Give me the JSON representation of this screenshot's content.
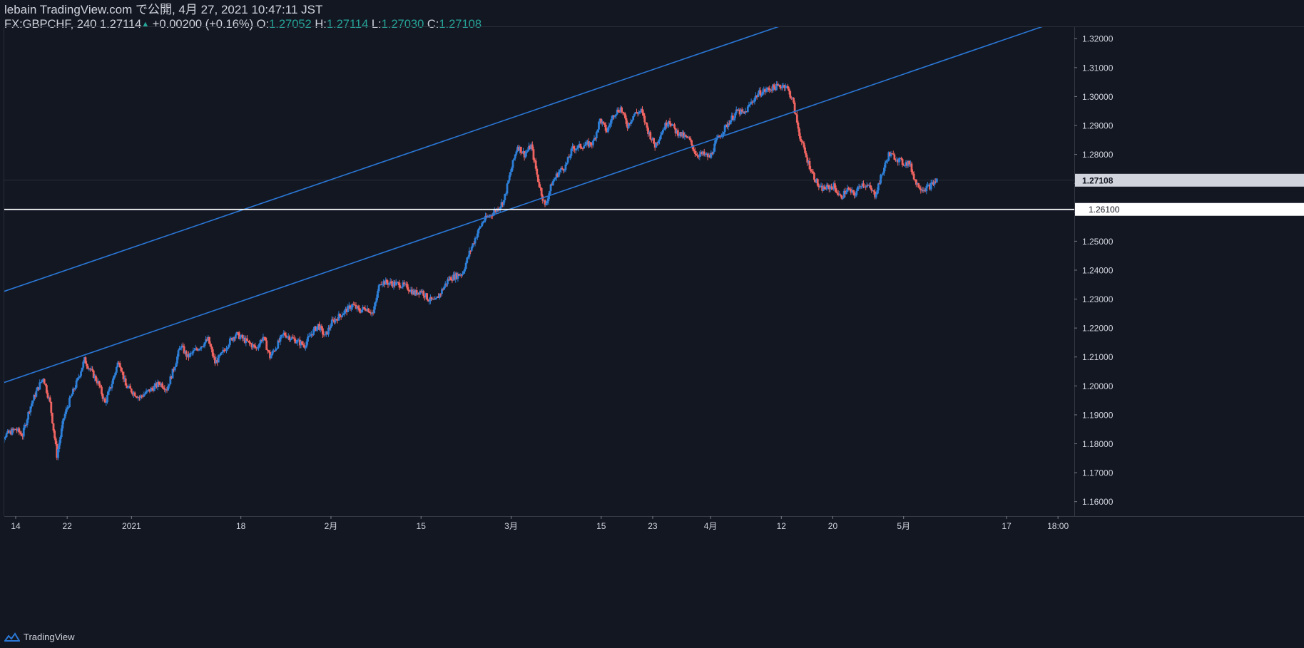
{
  "header": {
    "publish_line": "lebain TradingView.com で公開, 4月 27, 2021 10:47:11 JST",
    "symbol": "FX:GBPCHF, 240",
    "last": "1.27114",
    "change_arrow": "▲",
    "change": "+0.00200 (+0.16%)",
    "o_label": "O:",
    "o_val": "1.27052",
    "h_label": "H:",
    "h_val": "1.27114",
    "l_label": "L:",
    "l_val": "1.27030",
    "c_label": "C:",
    "c_val": "1.27108"
  },
  "footer": {
    "brand": "TradingView",
    "logo_icon": "tradingview-logo-icon"
  },
  "colors": {
    "background": "#131722",
    "up_candle": "#2d7fd8",
    "down_candle": "#ef6461",
    "channel_line": "#2a77d6",
    "support_line": "#ffffff",
    "text": "#d1d4dc",
    "positive": "#26a69a"
  },
  "chart_data": {
    "type": "candlestick",
    "symbol": "FX:GBPCHF",
    "interval": "240",
    "ylim": [
      1.155,
      1.324
    ],
    "y_ticks": [
      "1.32000",
      "1.31000",
      "1.30000",
      "1.29000",
      "1.28000",
      "1.27000",
      "1.26000",
      "1.25000",
      "1.24000",
      "1.23000",
      "1.22000",
      "1.21000",
      "1.20000",
      "1.19000",
      "1.18000",
      "1.17000",
      "1.16000"
    ],
    "x_ticks": [
      {
        "label": "14",
        "date": "2020-12-14"
      },
      {
        "label": "22",
        "date": "2020-12-22"
      },
      {
        "label": "2021",
        "date": "2021-01-01"
      },
      {
        "label": "18",
        "date": "2021-01-18"
      },
      {
        "label": "2月",
        "date": "2021-02-01"
      },
      {
        "label": "15",
        "date": "2021-02-15"
      },
      {
        "label": "3月",
        "date": "2021-03-01"
      },
      {
        "label": "15",
        "date": "2021-03-15"
      },
      {
        "label": "23",
        "date": "2021-03-23"
      },
      {
        "label": "4月",
        "date": "2021-04-01"
      },
      {
        "label": "12",
        "date": "2021-04-12"
      },
      {
        "label": "20",
        "date": "2021-04-20"
      },
      {
        "label": "5月",
        "date": "2021-05-01"
      },
      {
        "label": "17",
        "date": "2021-05-17"
      },
      {
        "label": "18:00",
        "date": "2021-05-25"
      }
    ],
    "price_path": [
      [
        "2020-12-11",
        1.181
      ],
      [
        "2020-12-14",
        1.185
      ],
      [
        "2020-12-15",
        1.183
      ],
      [
        "2020-12-16",
        1.192
      ],
      [
        "2020-12-17",
        1.198
      ],
      [
        "2020-12-18",
        1.203
      ],
      [
        "2020-12-19",
        1.194
      ],
      [
        "2020-12-20",
        1.176
      ],
      [
        "2020-12-21",
        1.189
      ],
      [
        "2020-12-22",
        1.196
      ],
      [
        "2020-12-23",
        1.202
      ],
      [
        "2020-12-24",
        1.209
      ],
      [
        "2020-12-26",
        1.201
      ],
      [
        "2020-12-27",
        1.194
      ],
      [
        "2020-12-28",
        1.201
      ],
      [
        "2020-12-29",
        1.209
      ],
      [
        "2020-12-30",
        1.2
      ],
      [
        "2021-01-01",
        1.196
      ],
      [
        "2021-01-04",
        1.201
      ],
      [
        "2021-01-05",
        1.199
      ],
      [
        "2021-01-06",
        1.206
      ],
      [
        "2021-01-07",
        1.214
      ],
      [
        "2021-01-08",
        1.21
      ],
      [
        "2021-01-11",
        1.216
      ],
      [
        "2021-01-12",
        1.208
      ],
      [
        "2021-01-13",
        1.211
      ],
      [
        "2021-01-14",
        1.215
      ],
      [
        "2021-01-15",
        1.218
      ],
      [
        "2021-01-18",
        1.213
      ],
      [
        "2021-01-19",
        1.217
      ],
      [
        "2021-01-20",
        1.21
      ],
      [
        "2021-01-21",
        1.214
      ],
      [
        "2021-01-22",
        1.218
      ],
      [
        "2021-01-25",
        1.214
      ],
      [
        "2021-01-26",
        1.218
      ],
      [
        "2021-01-27",
        1.221
      ],
      [
        "2021-01-28",
        1.217
      ],
      [
        "2021-01-29",
        1.222
      ],
      [
        "2021-02-01",
        1.228
      ],
      [
        "2021-02-02",
        1.226
      ],
      [
        "2021-02-03",
        1.227
      ],
      [
        "2021-02-04",
        1.225
      ],
      [
        "2021-02-05",
        1.236
      ],
      [
        "2021-02-08",
        1.235
      ],
      [
        "2021-02-09",
        1.234
      ],
      [
        "2021-02-10",
        1.232
      ],
      [
        "2021-02-11",
        1.233
      ],
      [
        "2021-02-12",
        1.23
      ],
      [
        "2021-02-13",
        1.229
      ],
      [
        "2021-02-15",
        1.237
      ],
      [
        "2021-02-17",
        1.239
      ],
      [
        "2021-02-18",
        1.246
      ],
      [
        "2021-02-19",
        1.252
      ],
      [
        "2021-02-20",
        1.257
      ],
      [
        "2021-02-22",
        1.261
      ],
      [
        "2021-02-23",
        1.264
      ],
      [
        "2021-02-24",
        1.274
      ],
      [
        "2021-02-25",
        1.283
      ],
      [
        "2021-02-26",
        1.28
      ],
      [
        "2021-02-27",
        1.283
      ],
      [
        "2021-02-28",
        1.271
      ],
      [
        "2021-03-01",
        1.262
      ],
      [
        "2021-03-02",
        1.27
      ],
      [
        "2021-03-03",
        1.274
      ],
      [
        "2021-03-04",
        1.276
      ],
      [
        "2021-03-05",
        1.282
      ],
      [
        "2021-03-08",
        1.284
      ],
      [
        "2021-03-09",
        1.292
      ],
      [
        "2021-03-10",
        1.288
      ],
      [
        "2021-03-11",
        1.294
      ],
      [
        "2021-03-12",
        1.296
      ],
      [
        "2021-03-13",
        1.29
      ],
      [
        "2021-03-14",
        1.294
      ],
      [
        "2021-03-15",
        1.295
      ],
      [
        "2021-03-16",
        1.288
      ],
      [
        "2021-03-17",
        1.283
      ],
      [
        "2021-03-18",
        1.288
      ],
      [
        "2021-03-19",
        1.292
      ],
      [
        "2021-03-20",
        1.288
      ],
      [
        "2021-03-22",
        1.285
      ],
      [
        "2021-03-23",
        1.28
      ],
      [
        "2021-03-24",
        1.28
      ],
      [
        "2021-03-25",
        1.279
      ],
      [
        "2021-03-26",
        1.285
      ],
      [
        "2021-03-28",
        1.292
      ],
      [
        "2021-03-29",
        1.295
      ],
      [
        "2021-03-30",
        1.294
      ],
      [
        "2021-03-31",
        1.298
      ],
      [
        "2021-04-01",
        1.301
      ],
      [
        "2021-04-02",
        1.302
      ],
      [
        "2021-04-03",
        1.303
      ],
      [
        "2021-04-05",
        1.304
      ],
      [
        "2021-04-06",
        1.299
      ],
      [
        "2021-04-07",
        1.287
      ],
      [
        "2021-04-08",
        1.279
      ],
      [
        "2021-04-09",
        1.273
      ],
      [
        "2021-04-10",
        1.268
      ],
      [
        "2021-04-12",
        1.269
      ],
      [
        "2021-04-13",
        1.265
      ],
      [
        "2021-04-14",
        1.268
      ],
      [
        "2021-04-15",
        1.266
      ],
      [
        "2021-04-16",
        1.27
      ],
      [
        "2021-04-17",
        1.269
      ],
      [
        "2021-04-18",
        1.266
      ],
      [
        "2021-04-19",
        1.273
      ],
      [
        "2021-04-20",
        1.28
      ],
      [
        "2021-04-21",
        1.279
      ],
      [
        "2021-04-22",
        1.277
      ],
      [
        "2021-04-23",
        1.277
      ],
      [
        "2021-04-24",
        1.27
      ],
      [
        "2021-04-25",
        1.268
      ],
      [
        "2021-04-26",
        1.269
      ],
      [
        "2021-04-27",
        1.2711
      ]
    ],
    "drawings": [
      {
        "name": "channel-upper-line",
        "kind": "trend-line",
        "points": [
          [
            "2020-12-10",
            1.231
          ],
          [
            "2021-04-12",
            1.3245
          ]
        ]
      },
      {
        "name": "channel-lower-line",
        "kind": "trend-line",
        "points": [
          [
            "2020-12-10",
            1.1995
          ],
          [
            "2021-05-23",
            1.3245
          ]
        ]
      },
      {
        "name": "support-line",
        "kind": "horizontal-line",
        "price": 1.261,
        "label": "1.26100"
      }
    ],
    "last_price": {
      "value": 1.27108,
      "label": "1.27108"
    },
    "grid": "faint",
    "legend": "top-left"
  }
}
